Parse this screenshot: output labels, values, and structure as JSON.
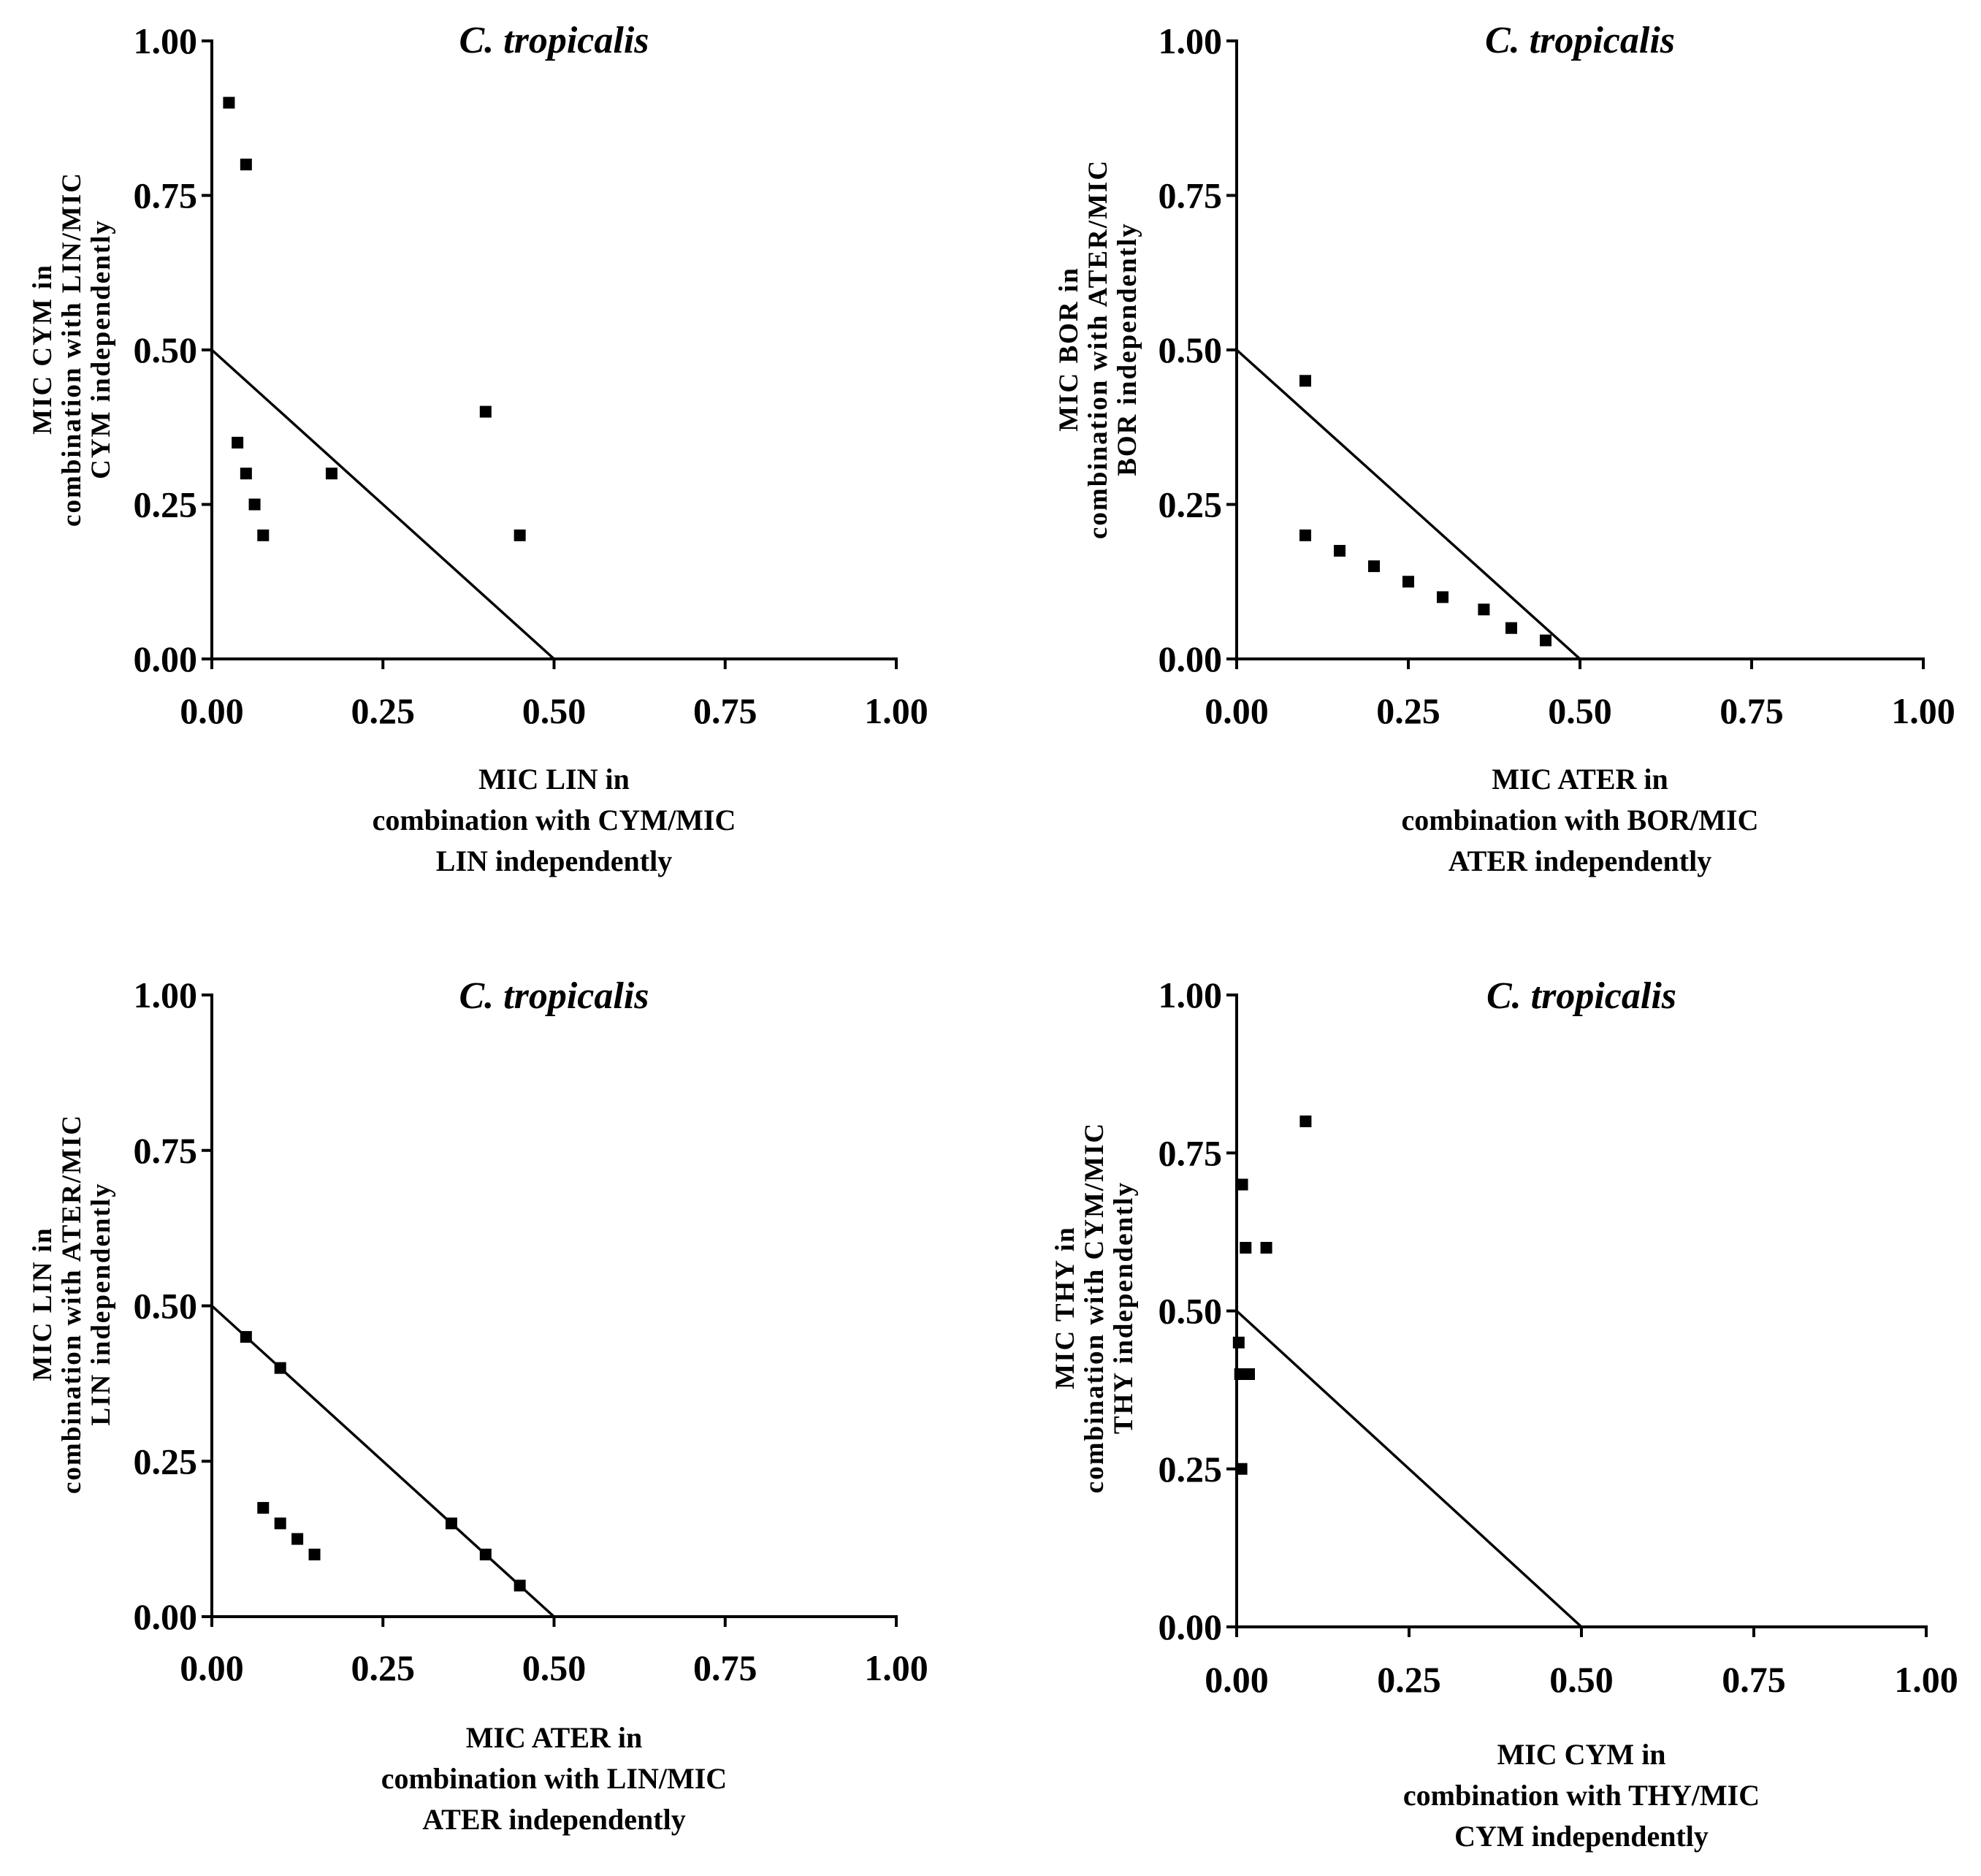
{
  "chart_data": [
    {
      "type": "scatter",
      "title": "C. tropicalis",
      "xlabel": [
        "MIC LIN in",
        "combination with CYM/MIC",
        "LIN independently"
      ],
      "ylabel": [
        "MIC CYM in",
        "combination with LIN/MIC",
        "CYM independently"
      ],
      "xlim": [
        0,
        1
      ],
      "ylim": [
        0,
        1
      ],
      "xticks": [
        "0.00",
        "0.25",
        "0.50",
        "0.75",
        "1.00"
      ],
      "yticks": [
        "0.00",
        "0.25",
        "0.50",
        "0.75",
        "1.00"
      ],
      "reference_line": {
        "from": [
          0,
          0.5
        ],
        "to": [
          0.5,
          0
        ]
      },
      "points": [
        {
          "x": 0.025,
          "y": 0.9
        },
        {
          "x": 0.05,
          "y": 0.8
        },
        {
          "x": 0.0375,
          "y": 0.35
        },
        {
          "x": 0.05,
          "y": 0.3
        },
        {
          "x": 0.0625,
          "y": 0.25
        },
        {
          "x": 0.075,
          "y": 0.2
        },
        {
          "x": 0.175,
          "y": 0.3
        },
        {
          "x": 0.4,
          "y": 0.4
        },
        {
          "x": 0.45,
          "y": 0.2
        }
      ]
    },
    {
      "type": "scatter",
      "title": "C. tropicalis",
      "xlabel": [
        "MIC ATER in",
        "combination with BOR/MIC",
        "ATER independently"
      ],
      "ylabel": [
        "MIC BOR in",
        "combination with ATER/MIC",
        "BOR independently"
      ],
      "xlim": [
        0,
        1
      ],
      "ylim": [
        0,
        1
      ],
      "xticks": [
        "0.00",
        "0.25",
        "0.50",
        "0.75",
        "1.00"
      ],
      "yticks": [
        "0.00",
        "0.25",
        "0.50",
        "0.75",
        "1.00"
      ],
      "reference_line": {
        "from": [
          0,
          0.5
        ],
        "to": [
          0.5,
          0
        ]
      },
      "points": [
        {
          "x": 0.1,
          "y": 0.45
        },
        {
          "x": 0.1,
          "y": 0.2
        },
        {
          "x": 0.15,
          "y": 0.175
        },
        {
          "x": 0.2,
          "y": 0.15
        },
        {
          "x": 0.25,
          "y": 0.125
        },
        {
          "x": 0.3,
          "y": 0.1
        },
        {
          "x": 0.36,
          "y": 0.08
        },
        {
          "x": 0.4,
          "y": 0.05
        },
        {
          "x": 0.45,
          "y": 0.03
        }
      ]
    },
    {
      "type": "scatter",
      "title": "C. tropicalis",
      "xlabel": [
        "MIC ATER in",
        "combination with LIN/MIC",
        "ATER independently"
      ],
      "ylabel": [
        "MIC LIN in",
        "combination with ATER/MIC",
        "LIN independently"
      ],
      "xlim": [
        0,
        1
      ],
      "ylim": [
        0,
        1
      ],
      "xticks": [
        "0.00",
        "0.25",
        "0.50",
        "0.75",
        "1.00"
      ],
      "yticks": [
        "0.00",
        "0.25",
        "0.50",
        "0.75",
        "1.00"
      ],
      "reference_line": {
        "from": [
          0,
          0.5
        ],
        "to": [
          0.5,
          0
        ]
      },
      "points": [
        {
          "x": 0.05,
          "y": 0.45
        },
        {
          "x": 0.1,
          "y": 0.4
        },
        {
          "x": 0.075,
          "y": 0.175
        },
        {
          "x": 0.1,
          "y": 0.15
        },
        {
          "x": 0.125,
          "y": 0.125
        },
        {
          "x": 0.15,
          "y": 0.1
        },
        {
          "x": 0.35,
          "y": 0.15
        },
        {
          "x": 0.4,
          "y": 0.1
        },
        {
          "x": 0.45,
          "y": 0.05
        }
      ]
    },
    {
      "type": "scatter",
      "title": "C. tropicalis",
      "xlabel": [
        "MIC CYM in",
        "combination with THY/MIC",
        "CYM independently"
      ],
      "ylabel": [
        "MIC THY in",
        "combination with CYM/MIC",
        "THY independently"
      ],
      "xlim": [
        0,
        1
      ],
      "ylim": [
        0,
        1
      ],
      "xticks": [
        "0.00",
        "0.25",
        "0.50",
        "0.75",
        "1.00"
      ],
      "yticks": [
        "0.00",
        "0.25",
        "0.50",
        "0.75",
        "1.00"
      ],
      "reference_line": {
        "from": [
          0,
          0.5
        ],
        "to": [
          0.5,
          0
        ]
      },
      "points": [
        {
          "x": 0.1,
          "y": 0.8
        },
        {
          "x": 0.008,
          "y": 0.7
        },
        {
          "x": 0.013,
          "y": 0.6
        },
        {
          "x": 0.043,
          "y": 0.6
        },
        {
          "x": 0.003,
          "y": 0.45
        },
        {
          "x": 0.005,
          "y": 0.4
        },
        {
          "x": 0.018,
          "y": 0.4
        },
        {
          "x": 0.007,
          "y": 0.25
        }
      ]
    }
  ]
}
